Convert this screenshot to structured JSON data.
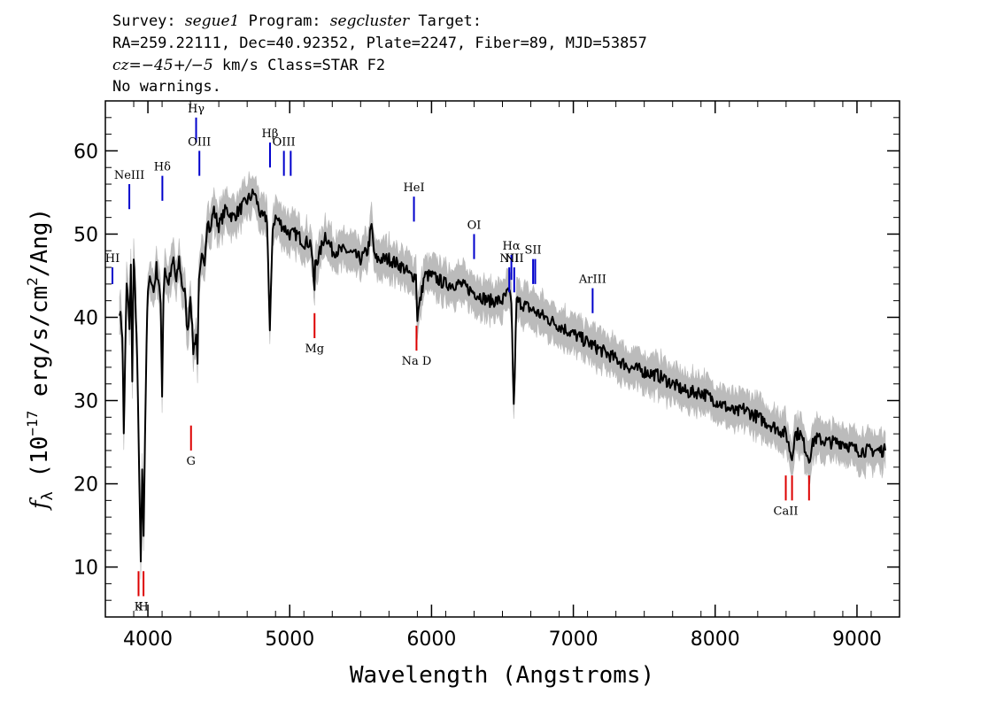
{
  "header": {
    "line1": {
      "survey_label": "Survey:",
      "survey": "segue1",
      "program_label": "Program:",
      "program": "segcluster",
      "target_label": "Target:"
    },
    "line2": "RA=259.22111, Dec=40.92352, Plate=2247, Fiber=89, MJD=53857",
    "line3": {
      "cz_label": "cz",
      "cz_value": "=−45+/−5",
      "cz_unit": "km/s",
      "class_text": "Class=STAR F2"
    },
    "line4": "No warnings."
  },
  "chart_data": {
    "type": "line",
    "title": "",
    "xlabel": "Wavelength (Angstroms)",
    "ylabel": "f_λ (10^-17 erg/s/cm^2/Ang)",
    "ylabel_parts": {
      "flambda": "f",
      "flambda_sub": "λ",
      "open": "(10",
      "exp": "−17",
      "mid": " erg/s/cm",
      "exp2": "2",
      "close": "/Ang)"
    },
    "xlim": [
      3700,
      9300
    ],
    "ylim": [
      4,
      66
    ],
    "x_ticks": [
      4000,
      5000,
      6000,
      7000,
      8000,
      9000
    ],
    "y_ticks": [
      10,
      20,
      30,
      40,
      50,
      60
    ],
    "grid": false,
    "colors": {
      "spectrum": "#000000",
      "error": "#bbbbbb",
      "emission": "#0000cc",
      "absorption": "#dd0000"
    },
    "series": [
      {
        "role": "spectrum",
        "x": [
          3800,
          3820,
          3830,
          3840,
          3850,
          3860,
          3870,
          3880,
          3890,
          3900,
          3910,
          3920,
          3930,
          3940,
          3950,
          3960,
          3970,
          3980,
          3990,
          4000,
          4020,
          4040,
          4060,
          4080,
          4090,
          4100,
          4110,
          4120,
          4140,
          4160,
          4180,
          4200,
          4220,
          4240,
          4260,
          4280,
          4300,
          4320,
          4340,
          4350,
          4360,
          4380,
          4400,
          4420,
          4440,
          4460,
          4500,
          4550,
          4600,
          4650,
          4700,
          4750,
          4800,
          4840,
          4860,
          4880,
          4900,
          4950,
          5000,
          5050,
          5100,
          5150,
          5175,
          5180,
          5200,
          5250,
          5300,
          5400,
          5500,
          5550,
          5577,
          5600,
          5700,
          5800,
          5850,
          5890,
          5900,
          5950,
          6000,
          6100,
          6200,
          6300,
          6400,
          6500,
          6540,
          6563,
          6580,
          6600,
          6700,
          6800,
          6900,
          7000,
          7100,
          7200,
          7300,
          7400,
          7500,
          7600,
          7700,
          7800,
          7900,
          8000,
          8100,
          8150,
          8200,
          8300,
          8400,
          8500,
          8542,
          8560,
          8600,
          8662,
          8700,
          8800,
          8900,
          9000,
          9100,
          9200
        ],
        "y": [
          41,
          38,
          26,
          35,
          44,
          42,
          39,
          46,
          33,
          47,
          43,
          38,
          30,
          20,
          10,
          22,
          14,
          26,
          37,
          43,
          45,
          43,
          46,
          44,
          41,
          31,
          43,
          46,
          44,
          45,
          47,
          44,
          47,
          44,
          43,
          38,
          43,
          36,
          38,
          35,
          44,
          47,
          47,
          52,
          50,
          53,
          51,
          53,
          52,
          53,
          54,
          55,
          52,
          52,
          38,
          51,
          52,
          51,
          50,
          50,
          49,
          49,
          43,
          47,
          47,
          50,
          48,
          48,
          47,
          48,
          51,
          47,
          47,
          46,
          45,
          45,
          40,
          45,
          45,
          44,
          44,
          43,
          42,
          42,
          43,
          42,
          29,
          42,
          41,
          40,
          39,
          38,
          37,
          36,
          35,
          34,
          33.5,
          33,
          32,
          31,
          31,
          30,
          29,
          28.5,
          29,
          28,
          27,
          26,
          23,
          26,
          26,
          23,
          25.5,
          25,
          25,
          24,
          24,
          24
        ]
      },
      {
        "role": "error",
        "note": ""
      }
    ],
    "emission_lines": [
      {
        "label": "HI",
        "x": 3750,
        "y_top": 46,
        "y_bot": 44
      },
      {
        "label": "NeIII",
        "x": 3869,
        "y_top": 56,
        "y_bot": 53
      },
      {
        "label": "Hδ",
        "x": 4102,
        "y_top": 57,
        "y_bot": 54
      },
      {
        "label": "Hγ",
        "x": 4340,
        "y_top": 64,
        "y_bot": 61
      },
      {
        "label": "OIII",
        "x": 4363,
        "y_top": 60,
        "y_bot": 57
      },
      {
        "label": "Hβ",
        "x": 4861,
        "y_top": 61,
        "y_bot": 58
      },
      {
        "label": "OIII",
        "x": 4959,
        "y_top": 60,
        "y_bot": 57
      },
      {
        "label": "",
        "x": 5007,
        "y_top": 60,
        "y_bot": 57
      },
      {
        "label": "HeI",
        "x": 5876,
        "y_top": 54.5,
        "y_bot": 51.5
      },
      {
        "label": "OI",
        "x": 6300,
        "y_top": 50,
        "y_bot": 47
      },
      {
        "label": "NII",
        "x": 6548,
        "y_top": 46,
        "y_bot": 43
      },
      {
        "label": "Hα",
        "x": 6563,
        "y_top": 47.5,
        "y_bot": 44.5
      },
      {
        "label": "NII",
        "x": 6583,
        "y_top": 46,
        "y_bot": 43
      },
      {
        "label": "SII",
        "x": 6716,
        "y_top": 47,
        "y_bot": 44
      },
      {
        "label": "",
        "x": 6731,
        "y_top": 47,
        "y_bot": 44
      },
      {
        "label": "ArIII",
        "x": 7136,
        "y_top": 43.5,
        "y_bot": 40.5
      }
    ],
    "absorption_lines": [
      {
        "label": "K",
        "x": 3934,
        "y_top": 9.5,
        "y_bot": 6.5
      },
      {
        "label": "H",
        "x": 3969,
        "y_top": 9.5,
        "y_bot": 6.5
      },
      {
        "label": "G",
        "x": 4304,
        "y_top": 27,
        "y_bot": 24
      },
      {
        "label": "Mg",
        "x": 5175,
        "y_top": 40.5,
        "y_bot": 37.5
      },
      {
        "label": "Na D",
        "x": 5894,
        "y_top": 39,
        "y_bot": 36
      },
      {
        "label": "CaII",
        "x": 8498,
        "y_top": 21,
        "y_bot": 18
      },
      {
        "label": "",
        "x": 8542,
        "y_top": 21,
        "y_bot": 18
      },
      {
        "label": "",
        "x": 8662,
        "y_top": 21,
        "y_bot": 18
      }
    ]
  }
}
